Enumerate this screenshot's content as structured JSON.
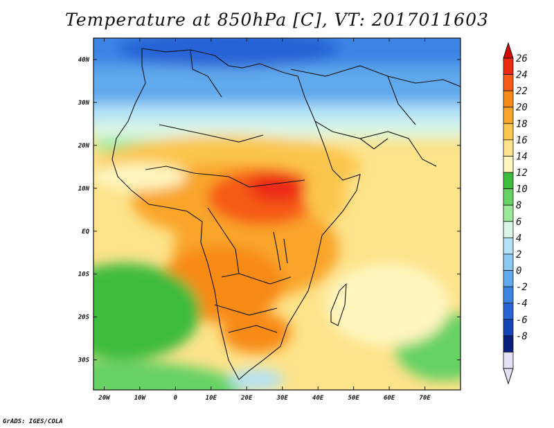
{
  "title": "Temperature at 850hPa [C], VT: 2017011603",
  "credit": "GrADS: IGES/COLA",
  "map": {
    "lon_range": [
      -23,
      80
    ],
    "lat_range": [
      -37,
      45
    ],
    "lon_ticks": [
      {
        "lon": -20,
        "label": "20W"
      },
      {
        "lon": -10,
        "label": "10W"
      },
      {
        "lon": 0,
        "label": "0"
      },
      {
        "lon": 10,
        "label": "10E"
      },
      {
        "lon": 20,
        "label": "20E"
      },
      {
        "lon": 30,
        "label": "30E"
      },
      {
        "lon": 40,
        "label": "40E"
      },
      {
        "lon": 50,
        "label": "50E"
      },
      {
        "lon": 60,
        "label": "60E"
      },
      {
        "lon": 70,
        "label": "70E"
      }
    ],
    "lat_ticks": [
      {
        "lat": 40,
        "label": "40N"
      },
      {
        "lat": 30,
        "label": "30N"
      },
      {
        "lat": 20,
        "label": "20N"
      },
      {
        "lat": 10,
        "label": "10N"
      },
      {
        "lat": 0,
        "label": "EQ"
      },
      {
        "lat": -10,
        "label": "10S"
      },
      {
        "lat": -20,
        "label": "20S"
      },
      {
        "lat": -30,
        "label": "30S"
      }
    ]
  },
  "colorbar": {
    "labels": [
      "26",
      "24",
      "22",
      "20",
      "18",
      "16",
      "14",
      "12",
      "10",
      "8",
      "6",
      "4",
      "2",
      "0",
      "-2",
      "-4",
      "-6",
      "-8"
    ],
    "colors_top_to_bottom": [
      "#ec2a12",
      "#f65a14",
      "#f88a18",
      "#f9a52b",
      "#fbc64e",
      "#fde38a",
      "#fff5bd",
      "#3cbb3c",
      "#66d264",
      "#9ce89a",
      "#dbf6e5",
      "#b4e3f7",
      "#8cc8f2",
      "#60a9ec",
      "#3b84e4",
      "#2764d6",
      "#1743b8",
      "#0a1e7e",
      "#e2e0f5"
    ],
    "top_arrow_color": "#d40c08",
    "bottom_arrow_color": "#e2e0f5"
  }
}
